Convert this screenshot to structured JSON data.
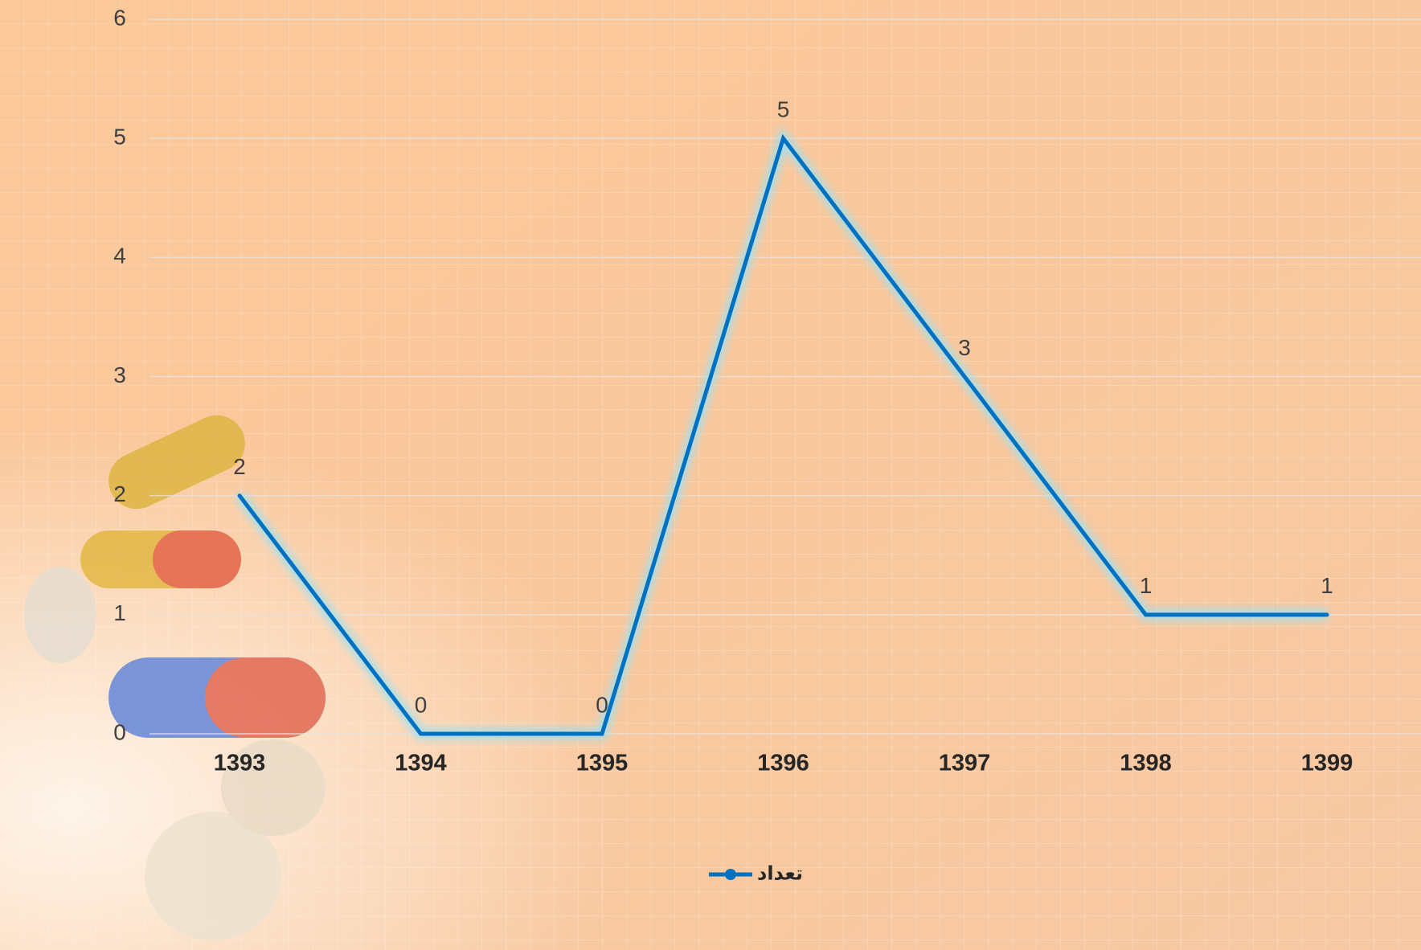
{
  "chart_data": {
    "type": "line",
    "categories": [
      "1393",
      "1394",
      "1395",
      "1396",
      "1397",
      "1398",
      "1399"
    ],
    "series": [
      {
        "name": "تعداد",
        "color": "#0070c0",
        "values": [
          2,
          0,
          0,
          5,
          3,
          1,
          1
        ]
      }
    ],
    "ylim": [
      0,
      6
    ],
    "yticks": [
      0,
      1,
      2,
      3,
      4,
      5,
      6
    ],
    "grid": true,
    "legend": "bottom",
    "data_labels": true
  }
}
